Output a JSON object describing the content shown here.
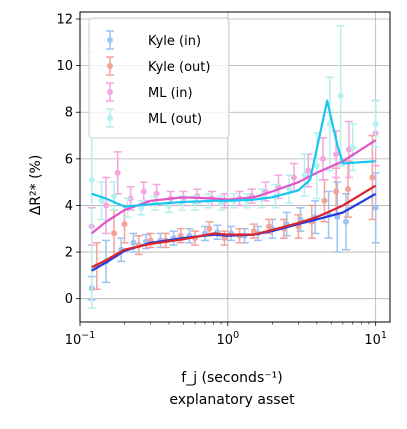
{
  "chart_data": {
    "type": "line",
    "title": "",
    "xlabel": "f_j (seconds⁻¹)",
    "xlabel_line2": "explanatory asset",
    "ylabel": "ΔR²* (%)",
    "xscale": "log",
    "xlim": [
      0.1,
      12.5
    ],
    "ylim": [
      -1,
      12.3
    ],
    "grid": true,
    "legend_placement": "top-left",
    "yticks": [
      0,
      2,
      4,
      6,
      8,
      10,
      12
    ],
    "xticks": [
      {
        "value": 0.1,
        "base": "10",
        "exp": "−1"
      },
      {
        "value": 1,
        "base": "10",
        "exp": "0"
      },
      {
        "value": 10,
        "base": "10",
        "exp": "1"
      }
    ],
    "series": [
      {
        "name": "Kyle (in)",
        "color": "#9ec3f2",
        "kind": "points",
        "x": [
          0.12,
          0.15,
          0.19,
          0.23,
          0.28,
          0.35,
          0.43,
          0.55,
          0.7,
          0.85,
          1.05,
          1.3,
          1.6,
          2.0,
          2.5,
          3.1,
          3.9,
          4.8,
          5.5,
          6.3,
          10.0
        ],
        "y": [
          0.45,
          1.6,
          2.1,
          2.4,
          2.45,
          2.5,
          2.6,
          2.7,
          2.8,
          2.85,
          2.8,
          2.7,
          2.8,
          3.0,
          3.2,
          3.4,
          3.5,
          3.6,
          3.5,
          3.3,
          3.9
        ],
        "err": [
          0.5,
          0.9,
          0.5,
          0.4,
          0.3,
          0.3,
          0.3,
          0.3,
          0.3,
          0.3,
          0.3,
          0.3,
          0.3,
          0.4,
          0.5,
          0.5,
          0.7,
          1.0,
          1.5,
          1.2,
          1.5
        ]
      },
      {
        "name": "Kyle (out)",
        "color": "#f4a39a",
        "kind": "points",
        "x": [
          0.13,
          0.17,
          0.2,
          0.25,
          0.3,
          0.38,
          0.48,
          0.6,
          0.75,
          0.95,
          1.2,
          1.5,
          1.9,
          2.4,
          3.0,
          3.7,
          4.5,
          5.4,
          6.5,
          9.5
        ],
        "y": [
          1.4,
          2.8,
          3.2,
          2.3,
          2.5,
          2.5,
          2.7,
          2.6,
          3.0,
          2.6,
          2.7,
          2.9,
          3.1,
          3.0,
          3.1,
          3.3,
          4.2,
          4.6,
          4.7,
          5.2
        ],
        "err": [
          1.0,
          1.0,
          0.8,
          0.4,
          0.3,
          0.3,
          0.3,
          0.3,
          0.3,
          0.3,
          0.3,
          0.3,
          0.3,
          0.4,
          0.5,
          0.7,
          0.9,
          1.0,
          1.2,
          1.8
        ]
      },
      {
        "name": "ML (in)",
        "color": "#f2a7e1",
        "kind": "points",
        "x": [
          0.12,
          0.15,
          0.18,
          0.22,
          0.27,
          0.33,
          0.41,
          0.5,
          0.62,
          0.78,
          0.95,
          1.2,
          1.45,
          1.8,
          2.2,
          2.8,
          3.5,
          4.4,
          5.4,
          6.6,
          10.0
        ],
        "y": [
          3.1,
          4.0,
          5.4,
          4.3,
          4.6,
          4.5,
          4.3,
          4.3,
          4.4,
          4.3,
          4.2,
          4.3,
          4.4,
          4.6,
          4.8,
          5.2,
          5.5,
          6.0,
          6.2,
          6.4,
          7.1
        ],
        "err": [
          0.8,
          1.2,
          0.9,
          0.5,
          0.4,
          0.4,
          0.3,
          0.3,
          0.3,
          0.3,
          0.3,
          0.3,
          0.3,
          0.4,
          0.5,
          0.6,
          0.7,
          0.9,
          1.0,
          1.2,
          1.4
        ]
      },
      {
        "name": "ML (out)",
        "color": "#b6f0ec",
        "kind": "points",
        "x": [
          0.12,
          0.14,
          0.17,
          0.21,
          0.26,
          0.32,
          0.4,
          0.49,
          0.6,
          0.74,
          0.9,
          1.1,
          1.35,
          1.7,
          2.1,
          2.6,
          3.3,
          4.0,
          4.9,
          5.8,
          7.0,
          10.0
        ],
        "y": [
          5.1,
          4.2,
          4.4,
          3.9,
          3.9,
          4.1,
          4.0,
          4.1,
          4.1,
          4.2,
          4.1,
          4.2,
          4.2,
          4.3,
          4.4,
          4.7,
          5.3,
          5.7,
          7.5,
          8.7,
          6.5,
          7.5
        ],
        "err": [
          5.5,
          0.8,
          0.6,
          0.4,
          0.3,
          0.3,
          0.3,
          0.3,
          0.3,
          0.3,
          0.3,
          0.3,
          0.3,
          0.4,
          0.5,
          0.6,
          0.9,
          1.4,
          2.0,
          3.0,
          1.0,
          1.0
        ]
      },
      {
        "name": "",
        "color": "#1f3fe0",
        "kind": "line",
        "x": [
          0.12,
          0.15,
          0.2,
          0.3,
          0.5,
          0.8,
          1.0,
          1.5,
          2.0,
          3.0,
          4.0,
          6.0,
          10.0
        ],
        "y": [
          1.2,
          1.55,
          2.05,
          2.4,
          2.6,
          2.75,
          2.7,
          2.75,
          2.9,
          3.2,
          3.4,
          3.7,
          4.5
        ]
      },
      {
        "name": "",
        "color": "#d8262f",
        "kind": "line",
        "x": [
          0.12,
          0.15,
          0.2,
          0.3,
          0.5,
          0.8,
          1.0,
          1.5,
          2.0,
          3.0,
          4.0,
          6.0,
          10.0
        ],
        "y": [
          1.35,
          1.65,
          2.1,
          2.35,
          2.55,
          2.8,
          2.75,
          2.75,
          2.95,
          3.25,
          3.5,
          4.0,
          4.85
        ]
      },
      {
        "name": "",
        "color": "#e055c6",
        "kind": "line",
        "x": [
          0.12,
          0.15,
          0.2,
          0.3,
          0.5,
          0.8,
          1.0,
          1.5,
          2.0,
          3.0,
          4.0,
          6.0,
          10.0
        ],
        "y": [
          2.8,
          3.3,
          3.8,
          4.2,
          4.35,
          4.3,
          4.25,
          4.35,
          4.6,
          5.0,
          5.4,
          5.9,
          6.8
        ]
      },
      {
        "name": "",
        "color": "#18c6ef",
        "kind": "line",
        "x": [
          0.12,
          0.15,
          0.2,
          0.3,
          0.5,
          0.8,
          1.0,
          1.5,
          2.0,
          3.0,
          3.6,
          4.7,
          5.5,
          6.0,
          10.0
        ],
        "y": [
          4.5,
          4.3,
          3.95,
          4.05,
          4.15,
          4.2,
          4.2,
          4.25,
          4.35,
          4.65,
          5.1,
          8.5,
          6.6,
          5.8,
          5.9
        ]
      }
    ]
  }
}
